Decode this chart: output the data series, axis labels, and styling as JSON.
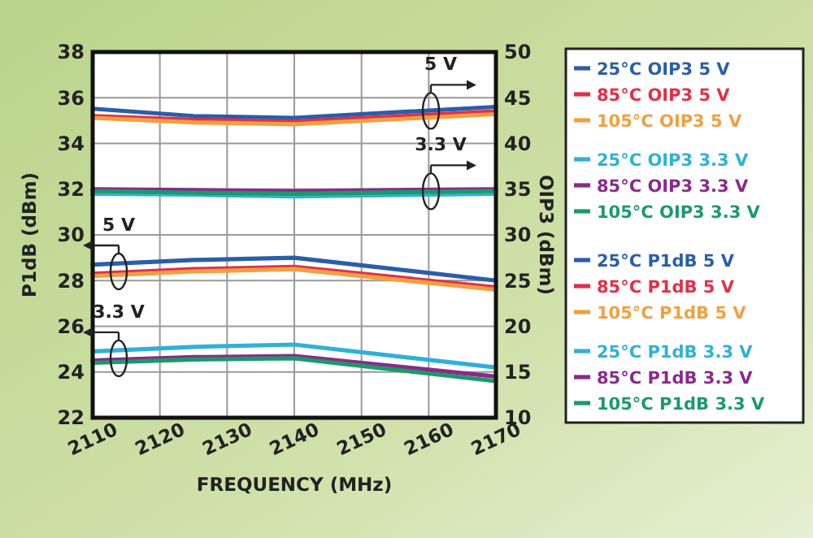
{
  "chart_data": {
    "type": "line",
    "xlabel": "FREQUENCY (MHz)",
    "ylabel": "P1dB (dBm)",
    "y2label": "OIP3 (dBm)",
    "x": [
      2110,
      2125,
      2140,
      2170
    ],
    "xlim": [
      2110,
      2170
    ],
    "xticks": [
      2110,
      2120,
      2130,
      2140,
      2150,
      2160,
      2170
    ],
    "ylim": [
      22,
      38
    ],
    "yticks": [
      22,
      24,
      26,
      28,
      30,
      32,
      34,
      36,
      38
    ],
    "y2lim": [
      10,
      50
    ],
    "y2ticks": [
      10,
      15,
      20,
      25,
      30,
      35,
      40,
      45,
      50
    ],
    "grid": true,
    "legend": "right",
    "marker": "none",
    "line_style": "solid",
    "series": [
      {
        "name": "25°C OIP3 5 V",
        "color": "#2a5ea8",
        "axis": "y2",
        "values": [
          43.8,
          43.0,
          42.8,
          44.0
        ]
      },
      {
        "name": "85°C OIP3 5 V",
        "color": "#e0304a",
        "axis": "y2",
        "values": [
          43.0,
          42.6,
          42.4,
          43.5
        ]
      },
      {
        "name": "105°C OIP3 5 V",
        "color": "#f0a040",
        "axis": "y2",
        "values": [
          42.8,
          42.3,
          42.1,
          43.2
        ]
      },
      {
        "name": "25°C OIP3 3.3 V",
        "color": "#30b0d8",
        "axis": "y2",
        "values": [
          34.5,
          34.4,
          34.2,
          34.5
        ]
      },
      {
        "name": "85°C OIP3 3.3 V",
        "color": "#8a2a8a",
        "axis": "y2",
        "values": [
          35.0,
          34.9,
          34.8,
          35.0
        ]
      },
      {
        "name": "105°C OIP3 3.3 V",
        "color": "#1a9a6a",
        "axis": "y2",
        "values": [
          34.8,
          34.6,
          34.5,
          34.8
        ]
      },
      {
        "name": "25°C P1dB 5 V",
        "color": "#2a5ea8",
        "values": [
          28.7,
          28.9,
          29.0,
          28.0
        ]
      },
      {
        "name": "85°C P1dB 5 V",
        "color": "#e0304a",
        "values": [
          28.3,
          28.5,
          28.6,
          27.7
        ]
      },
      {
        "name": "105°C P1dB 5 V",
        "color": "#f0a040",
        "values": [
          28.2,
          28.4,
          28.5,
          27.6
        ]
      },
      {
        "name": "25°C P1dB 3.3 V",
        "color": "#30b0d8",
        "values": [
          24.9,
          25.1,
          25.2,
          24.2
        ]
      },
      {
        "name": "85°C P1dB 3.3 V",
        "color": "#8a2a8a",
        "values": [
          24.5,
          24.65,
          24.7,
          23.8
        ]
      },
      {
        "name": "105°C P1dB 3.3 V",
        "color": "#1a9a6a",
        "values": [
          24.4,
          24.55,
          24.6,
          23.6
        ]
      }
    ],
    "annotations": [
      "5 V",
      "3.3 V",
      "5 V",
      "3.3 V"
    ]
  }
}
